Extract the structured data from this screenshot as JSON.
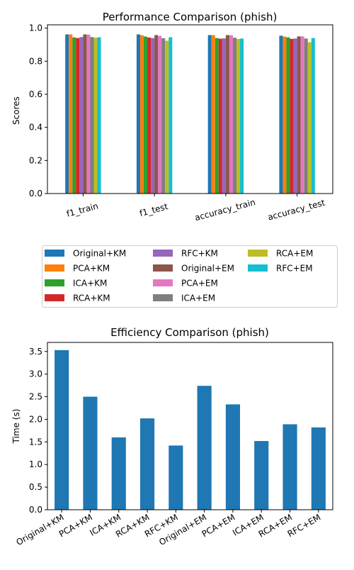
{
  "chart_data": [
    {
      "type": "bar",
      "title": "Performance Comparison (phish)",
      "xlabel": "",
      "ylabel": "Scores",
      "ylim": [
        0,
        1.02
      ],
      "yticks": [
        "0.0",
        "0.2",
        "0.4",
        "0.6",
        "0.8",
        "1.0"
      ],
      "ytick_values": [
        0,
        0.2,
        0.4,
        0.6,
        0.8,
        1.0
      ],
      "grid": false,
      "legend_placement": "below-plot",
      "categories": [
        "f1_train",
        "f1_test",
        "accuracy_train",
        "accuracy_test"
      ],
      "series": [
        {
          "name": "Original+KM",
          "color": "#1f77b4",
          "values": [
            0.962,
            0.962,
            0.958,
            0.954
          ]
        },
        {
          "name": "PCA+KM",
          "color": "#ff7f0e",
          "values": [
            0.962,
            0.957,
            0.958,
            0.949
          ]
        },
        {
          "name": "ICA+KM",
          "color": "#2ca02c",
          "values": [
            0.944,
            0.949,
            0.94,
            0.944
          ]
        },
        {
          "name": "RCA+KM",
          "color": "#d62728",
          "values": [
            0.94,
            0.943,
            0.936,
            0.935
          ]
        },
        {
          "name": "RFC+KM",
          "color": "#9467bd",
          "values": [
            0.946,
            0.94,
            0.938,
            0.937
          ]
        },
        {
          "name": "Original+EM",
          "color": "#8c564b",
          "values": [
            0.962,
            0.958,
            0.958,
            0.95
          ]
        },
        {
          "name": "PCA+EM",
          "color": "#e377c2",
          "values": [
            0.961,
            0.953,
            0.957,
            0.95
          ]
        },
        {
          "name": "ICA+EM",
          "color": "#7f7f7f",
          "values": [
            0.946,
            0.939,
            0.942,
            0.937
          ]
        },
        {
          "name": "RCA+EM",
          "color": "#bcbd22",
          "values": [
            0.942,
            0.924,
            0.935,
            0.915
          ]
        },
        {
          "name": "RFC+EM",
          "color": "#17becf",
          "values": [
            0.945,
            0.945,
            0.937,
            0.94
          ]
        }
      ]
    },
    {
      "type": "bar",
      "title": "Efficiency Comparison (phish)",
      "xlabel": "",
      "ylabel": "Time (s)",
      "ylim": [
        0,
        3.7
      ],
      "yticks": [
        "0.0",
        "0.5",
        "1.0",
        "1.5",
        "2.0",
        "2.5",
        "3.0",
        "3.5"
      ],
      "ytick_values": [
        0,
        0.5,
        1.0,
        1.5,
        2.0,
        2.5,
        3.0,
        3.5
      ],
      "grid": false,
      "color": "#1f77b4",
      "categories": [
        "Original+KM",
        "PCA+KM",
        "ICA+KM",
        "RCA+KM",
        "RFC+KM",
        "Original+EM",
        "PCA+EM",
        "ICA+EM",
        "RCA+EM",
        "RFC+EM"
      ],
      "values": [
        3.53,
        2.5,
        1.6,
        2.02,
        1.42,
        2.74,
        2.33,
        1.52,
        1.89,
        1.82
      ]
    }
  ]
}
